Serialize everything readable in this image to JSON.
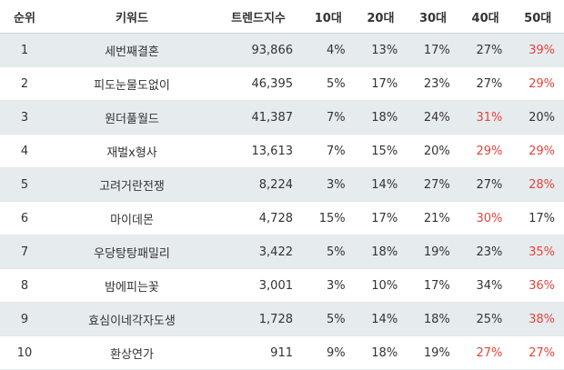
{
  "colors": {
    "shade": "#e6ebee",
    "highlight": "#e8433a",
    "text": "#333333"
  },
  "headers": [
    "순위",
    "키워드",
    "트렌드지수",
    "10대",
    "20대",
    "30대",
    "40대",
    "50대"
  ],
  "rows": [
    [
      "1",
      "세번째결혼",
      "93,866",
      "4%",
      "13%",
      "17%",
      "27%",
      "39%"
    ],
    [
      "2",
      "피도눈물도없이",
      "46,395",
      "5%",
      "17%",
      "23%",
      "27%",
      "29%"
    ],
    [
      "3",
      "원더풀월드",
      "41,387",
      "7%",
      "18%",
      "24%",
      "31%",
      "20%"
    ],
    [
      "4",
      "재벌x형사",
      "13,613",
      "7%",
      "15%",
      "20%",
      "29%",
      "29%"
    ],
    [
      "5",
      "고려거란전쟁",
      "8,224",
      "3%",
      "14%",
      "27%",
      "27%",
      "28%"
    ],
    [
      "6",
      "마이데몬",
      "4,728",
      "15%",
      "17%",
      "21%",
      "30%",
      "17%"
    ],
    [
      "7",
      "우당탕탕패밀리",
      "3,422",
      "5%",
      "18%",
      "19%",
      "23%",
      "35%"
    ],
    [
      "8",
      "밤에피는꽃",
      "3,001",
      "3%",
      "10%",
      "17%",
      "34%",
      "36%"
    ],
    [
      "9",
      "효심이네각자도생",
      "1,728",
      "5%",
      "14%",
      "18%",
      "25%",
      "38%"
    ],
    [
      "10",
      "환상연가",
      "911",
      "9%",
      "18%",
      "19%",
      "27%",
      "27%"
    ]
  ],
  "highlighted": {
    "0": [
      7
    ],
    "1": [
      7
    ],
    "2": [
      6
    ],
    "3": [
      6,
      7
    ],
    "4": [
      7
    ],
    "5": [
      6
    ],
    "6": [
      7
    ],
    "7": [
      7
    ],
    "8": [
      7
    ],
    "9": [
      6,
      7
    ]
  }
}
